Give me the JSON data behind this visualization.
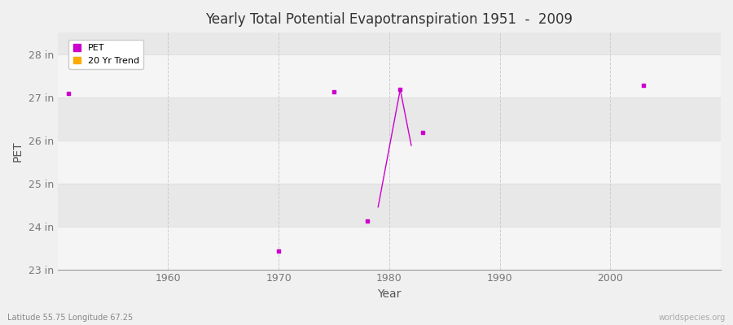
{
  "title": "Yearly Total Potential Evapotranspiration 1951  -  2009",
  "xlabel": "Year",
  "ylabel": "PET",
  "background_color": "#f0f0f0",
  "plot_bg_even": "#e8e8e8",
  "plot_bg_odd": "#f5f5f5",
  "pet_color": "#cc00cc",
  "trend_color": "#ffaa00",
  "ylim": [
    23,
    28.5
  ],
  "xlim": [
    1950,
    2010
  ],
  "yticks": [
    23,
    24,
    25,
    26,
    27,
    28
  ],
  "ytick_labels": [
    "23 in",
    "24 in",
    "25 in",
    "26 in",
    "27 in",
    "28 in"
  ],
  "xticks": [
    1960,
    1970,
    1980,
    1990,
    2000
  ],
  "scatter_years": [
    1951,
    1970,
    1975,
    1978,
    1981,
    1983,
    2003
  ],
  "scatter_values": [
    27.08,
    23.42,
    27.12,
    24.12,
    27.18,
    26.18,
    27.28
  ],
  "line_years": [
    1979,
    1981,
    1982
  ],
  "line_values": [
    24.45,
    27.18,
    25.88
  ],
  "subtitle": "Latitude 55.75 Longitude 67.25",
  "watermark": "worldspecies.org"
}
